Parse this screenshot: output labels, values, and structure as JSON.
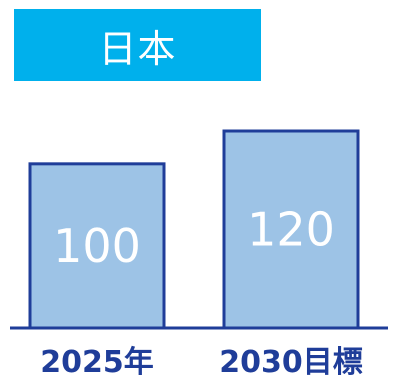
{
  "chart_data": {
    "type": "bar",
    "title": "日本",
    "categories": [
      "2025年",
      "2030目標"
    ],
    "values": [
      100,
      120
    ],
    "data_labels": [
      "100",
      "120"
    ],
    "xlabel": "",
    "ylabel": "",
    "ylim": [
      0,
      120
    ],
    "grid": false,
    "legend": "none"
  },
  "colors": {
    "title_bg": "#00b0ec",
    "bar_fill": "#9dc3e6",
    "bar_stroke": "#1f3d99",
    "axis": "#1f3d99",
    "category_text": "#1f3d99",
    "value_text": "#ffffff"
  }
}
